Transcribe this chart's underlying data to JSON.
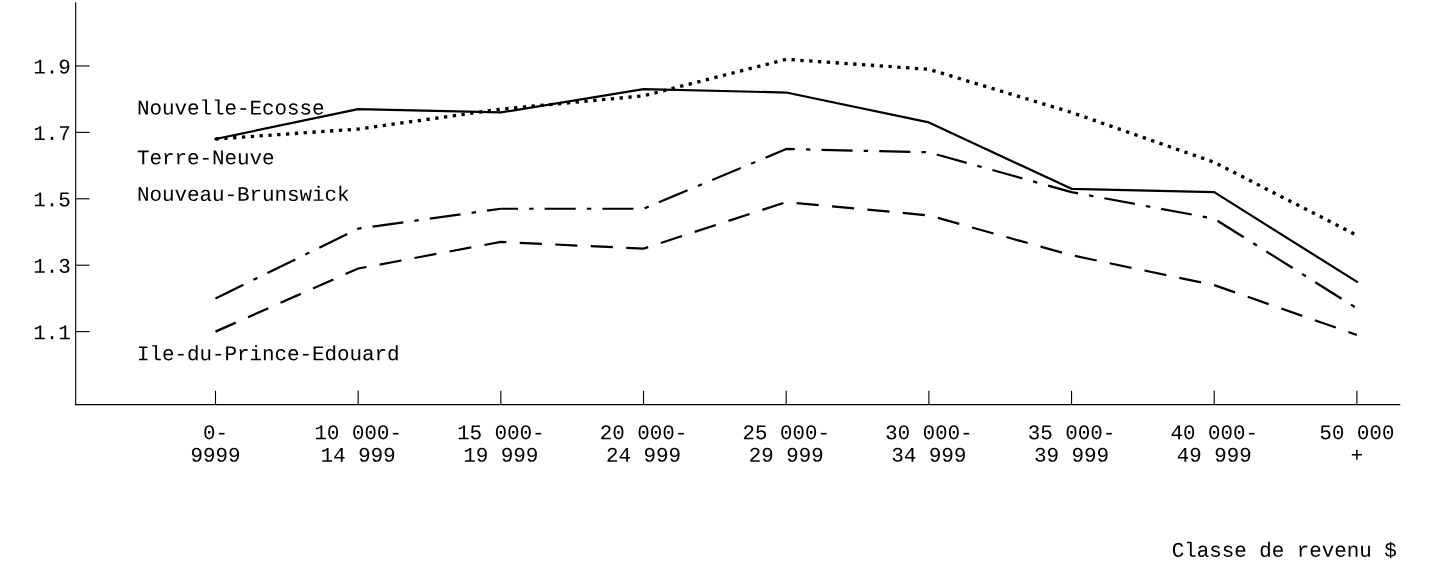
{
  "chart_data": {
    "type": "line",
    "xlabel": "Classe de revenu $",
    "categories": [
      "0-\n9999",
      "10 000-\n14 999",
      "15 000-\n19 999",
      "20 000-\n24 999",
      "25 000-\n29 999",
      "30 000-\n34 999",
      "35 000-\n39 999",
      "40 000-\n49 999",
      "50 000\n+"
    ],
    "series": [
      {
        "name": "Nouvelle-Ecosse",
        "color": "#000000",
        "line_style": "dotted",
        "values": [
          1.68,
          1.71,
          1.77,
          1.81,
          1.92,
          1.89,
          1.76,
          1.61,
          1.39
        ]
      },
      {
        "name": "Terre-Neuve",
        "color": "#000000",
        "line_style": "solid",
        "values": [
          1.68,
          1.77,
          1.76,
          1.83,
          1.82,
          1.73,
          1.53,
          1.52,
          1.25
        ]
      },
      {
        "name": "Nouveau-Brunswick",
        "color": "#000000",
        "line_style": "dashdot",
        "values": [
          1.2,
          1.41,
          1.47,
          1.47,
          1.65,
          1.64,
          1.52,
          1.44,
          1.17
        ]
      },
      {
        "name": "Ile-du-Prince-Edouard",
        "color": "#000000",
        "line_style": "dashed",
        "values": [
          1.1,
          1.29,
          1.37,
          1.35,
          1.49,
          1.45,
          1.33,
          1.24,
          1.09
        ]
      }
    ],
    "ylim": [
      0.88,
      2.09
    ],
    "yticks": [
      1.1,
      1.3,
      1.5,
      1.7,
      1.9
    ],
    "grid": false,
    "legend": false,
    "marker": "none"
  }
}
